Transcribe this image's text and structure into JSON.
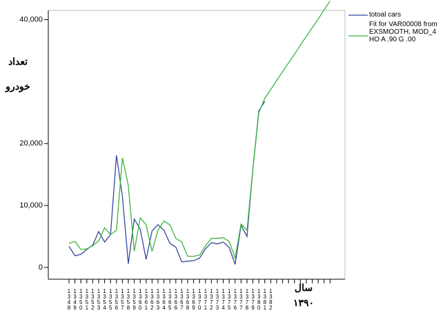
{
  "chart_data": {
    "type": "line",
    "y_label": [
      "تعداد",
      "خودرو"
    ],
    "x_label": [
      "سال",
      "۱۳۹۰"
    ],
    "categories": [
      "1348",
      "1349",
      "1350",
      "1351",
      "1352",
      "1353",
      "1354",
      "1355",
      "1356",
      "1357",
      "1358",
      "1359",
      "1360",
      "1361",
      "1362",
      "1363",
      "1364",
      "1365",
      "1366",
      "1367",
      "1368",
      "1369",
      "1370",
      "1371",
      "1372",
      "1373",
      "1374",
      "1375",
      "1376",
      "1377",
      "1378",
      "1379",
      "1380",
      "1381",
      "1382",
      null,
      null,
      null,
      null,
      null,
      null,
      null,
      null,
      null,
      null
    ],
    "series": [
      {
        "name": "totoal cars",
        "color": "#34449c",
        "values": [
          3400,
          1900,
          2100,
          2900,
          3600,
          5800,
          4100,
          5300,
          18100,
          11500,
          600,
          7800,
          6200,
          1300,
          5900,
          6900,
          6000,
          3900,
          3300,
          900,
          1000,
          1100,
          1500,
          3000,
          4000,
          3800,
          4100,
          3200,
          500,
          6800,
          5000,
          16000,
          25300,
          26800,
          null,
          null,
          null,
          null,
          null,
          null,
          null,
          null,
          null,
          null,
          null
        ]
      },
      {
        "name": "Fit for VAR00008 from EXSMOOTH, MOD_4 HO A .90 G .00",
        "color": "#3cb43c",
        "values": [
          3900,
          4200,
          2900,
          3000,
          3500,
          4300,
          6400,
          5300,
          6000,
          17700,
          13200,
          2600,
          8000,
          6900,
          2600,
          6000,
          7500,
          6900,
          4700,
          4100,
          1800,
          1800,
          2000,
          3500,
          4700,
          4700,
          4800,
          4200,
          1500,
          7000,
          6000,
          16000,
          25000,
          27300,
          28700,
          30200,
          31600,
          33000,
          34400,
          35900,
          37300,
          38700,
          40100,
          41600,
          43000
        ]
      }
    ],
    "ylim": [
      -1900,
      41500
    ],
    "yticks": [
      {
        "value": 0,
        "label": "0"
      },
      {
        "value": 10000,
        "label": "10,000"
      },
      {
        "value": 20000,
        "label": "20,000"
      },
      {
        "value": 40000,
        "label": "40,000"
      }
    ],
    "grid": false,
    "legend": "right"
  }
}
